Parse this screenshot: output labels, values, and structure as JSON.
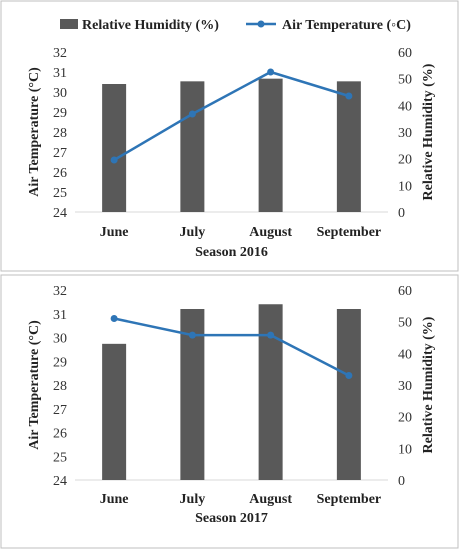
{
  "legend": {
    "bar_label": "Relative Humidity (%)",
    "line_label": "Air Temperature (◦C)"
  },
  "colors": {
    "bar": "#595959",
    "line": "#2E75B6",
    "border": "#bfbfbf"
  },
  "chart_data": [
    {
      "type": "bar",
      "title": "Season 2016",
      "categories": [
        "June",
        "July",
        "August",
        "September"
      ],
      "ylabel": "Air Temperature (°C)",
      "y2label": "Relative Humidity (%)",
      "ylim": [
        24,
        32
      ],
      "y2lim": [
        0,
        60
      ],
      "yticks": [
        "24",
        "25",
        "26",
        "27",
        "28",
        "29",
        "30",
        "31",
        "32"
      ],
      "y2ticks": [
        "0",
        "10",
        "20",
        "30",
        "40",
        "50",
        "60"
      ],
      "series": [
        {
          "name": "Relative Humidity (%)",
          "axis": "right",
          "kind": "bar",
          "values": [
            48,
            49,
            50,
            49
          ]
        },
        {
          "name": "Air Temperature (◦C)",
          "axis": "left",
          "kind": "line",
          "values": [
            26.6,
            28.9,
            31.0,
            29.8
          ]
        }
      ]
    },
    {
      "type": "bar",
      "title": "Season 2017",
      "categories": [
        "June",
        "July",
        "August",
        "September"
      ],
      "ylabel": "Air Temperature (°C)",
      "y2label": "Relative Humidity (%)",
      "ylim": [
        24,
        32
      ],
      "y2lim": [
        0,
        60
      ],
      "yticks": [
        "24",
        "25",
        "26",
        "27",
        "28",
        "29",
        "30",
        "31",
        "32"
      ],
      "y2ticks": [
        "0",
        "10",
        "20",
        "30",
        "40",
        "50",
        "60"
      ],
      "series": [
        {
          "name": "Relative Humidity (%)",
          "axis": "right",
          "kind": "bar",
          "values": [
            43,
            54,
            55.5,
            54
          ]
        },
        {
          "name": "Air Temperature (◦C)",
          "axis": "left",
          "kind": "line",
          "values": [
            30.8,
            30.1,
            30.1,
            28.4
          ]
        }
      ]
    }
  ]
}
